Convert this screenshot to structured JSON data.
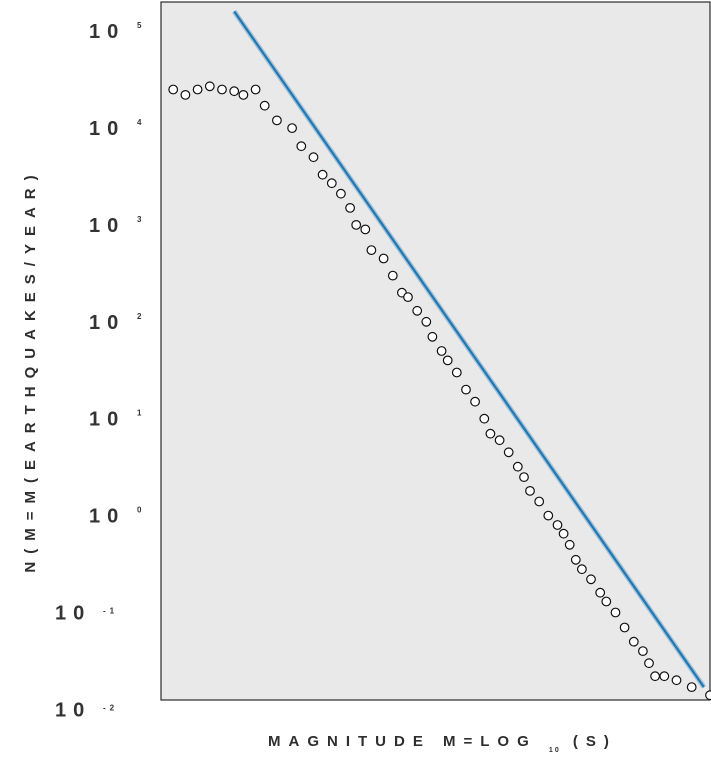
{
  "chart_data": {
    "type": "scatter",
    "title": "",
    "xlabel": "MAGNITUDE M=LOG",
    "xlabel_subscript": "10",
    "xlabel_suffix": "(S)",
    "ylabel": "N(M=M(EARTHQUAKES/YEAR)",
    "y_scale": "log",
    "ylim": [
      0.0125,
      200000
    ],
    "xlim": [
      -0.3,
      8.7
    ],
    "grid": false,
    "background_color": "#e9e9e9",
    "frame_color": "#2b2b2b",
    "series": [
      {
        "kind": "points",
        "marker": "open-circle",
        "color": "#111111",
        "x": [
          -0.1,
          0.1,
          0.3,
          0.5,
          0.7,
          0.9,
          1.05,
          1.25,
          1.4,
          1.6,
          1.85,
          2.0,
          2.2,
          2.35,
          2.5,
          2.65,
          2.8,
          2.9,
          3.05,
          3.15,
          3.35,
          3.5,
          3.65,
          3.75,
          3.9,
          4.05,
          4.15,
          4.3,
          4.4,
          4.55,
          4.7,
          4.85,
          5.0,
          5.1,
          5.25,
          5.4,
          5.55,
          5.65,
          5.75,
          5.9,
          6.05,
          6.2,
          6.3,
          6.4,
          6.5,
          6.6,
          6.75,
          6.9,
          7.0,
          7.15,
          7.3,
          7.45,
          7.6,
          7.7,
          7.8,
          7.95,
          8.15,
          8.4,
          8.7
        ],
        "y": [
          25000,
          22000,
          25000,
          27000,
          25000,
          24000,
          22000,
          25000,
          17000,
          12000,
          10000,
          6500,
          5000,
          3300,
          2700,
          2100,
          1500,
          1000,
          900,
          550,
          450,
          300,
          200,
          180,
          130,
          100,
          70,
          50,
          40,
          30,
          20,
          15,
          10,
          7,
          6,
          4.5,
          3.2,
          2.5,
          1.8,
          1.4,
          1,
          0.8,
          0.65,
          0.5,
          0.35,
          0.28,
          0.22,
          0.16,
          0.13,
          0.1,
          0.07,
          0.05,
          0.04,
          0.03,
          0.022,
          0.022,
          0.02,
          0.017,
          0.014
        ]
      },
      {
        "kind": "fit-line",
        "color": "#1f77b4",
        "x": [
          0.9,
          8.6
        ],
        "y": [
          160000,
          0.017
        ]
      }
    ],
    "y_ticks": [
      {
        "base": "10",
        "exp": "5",
        "value": 100000
      },
      {
        "base": "10",
        "exp": "4",
        "value": 10000
      },
      {
        "base": "10",
        "exp": "3",
        "value": 1000
      },
      {
        "base": "10",
        "exp": "2",
        "value": 100
      },
      {
        "base": "10",
        "exp": "1",
        "value": 10
      },
      {
        "base": "10",
        "exp": "0",
        "value": 1
      },
      {
        "base": "10",
        "exp": "-1",
        "value": 0.1
      },
      {
        "base": "10",
        "exp": "-2",
        "value": 0.01
      }
    ]
  }
}
